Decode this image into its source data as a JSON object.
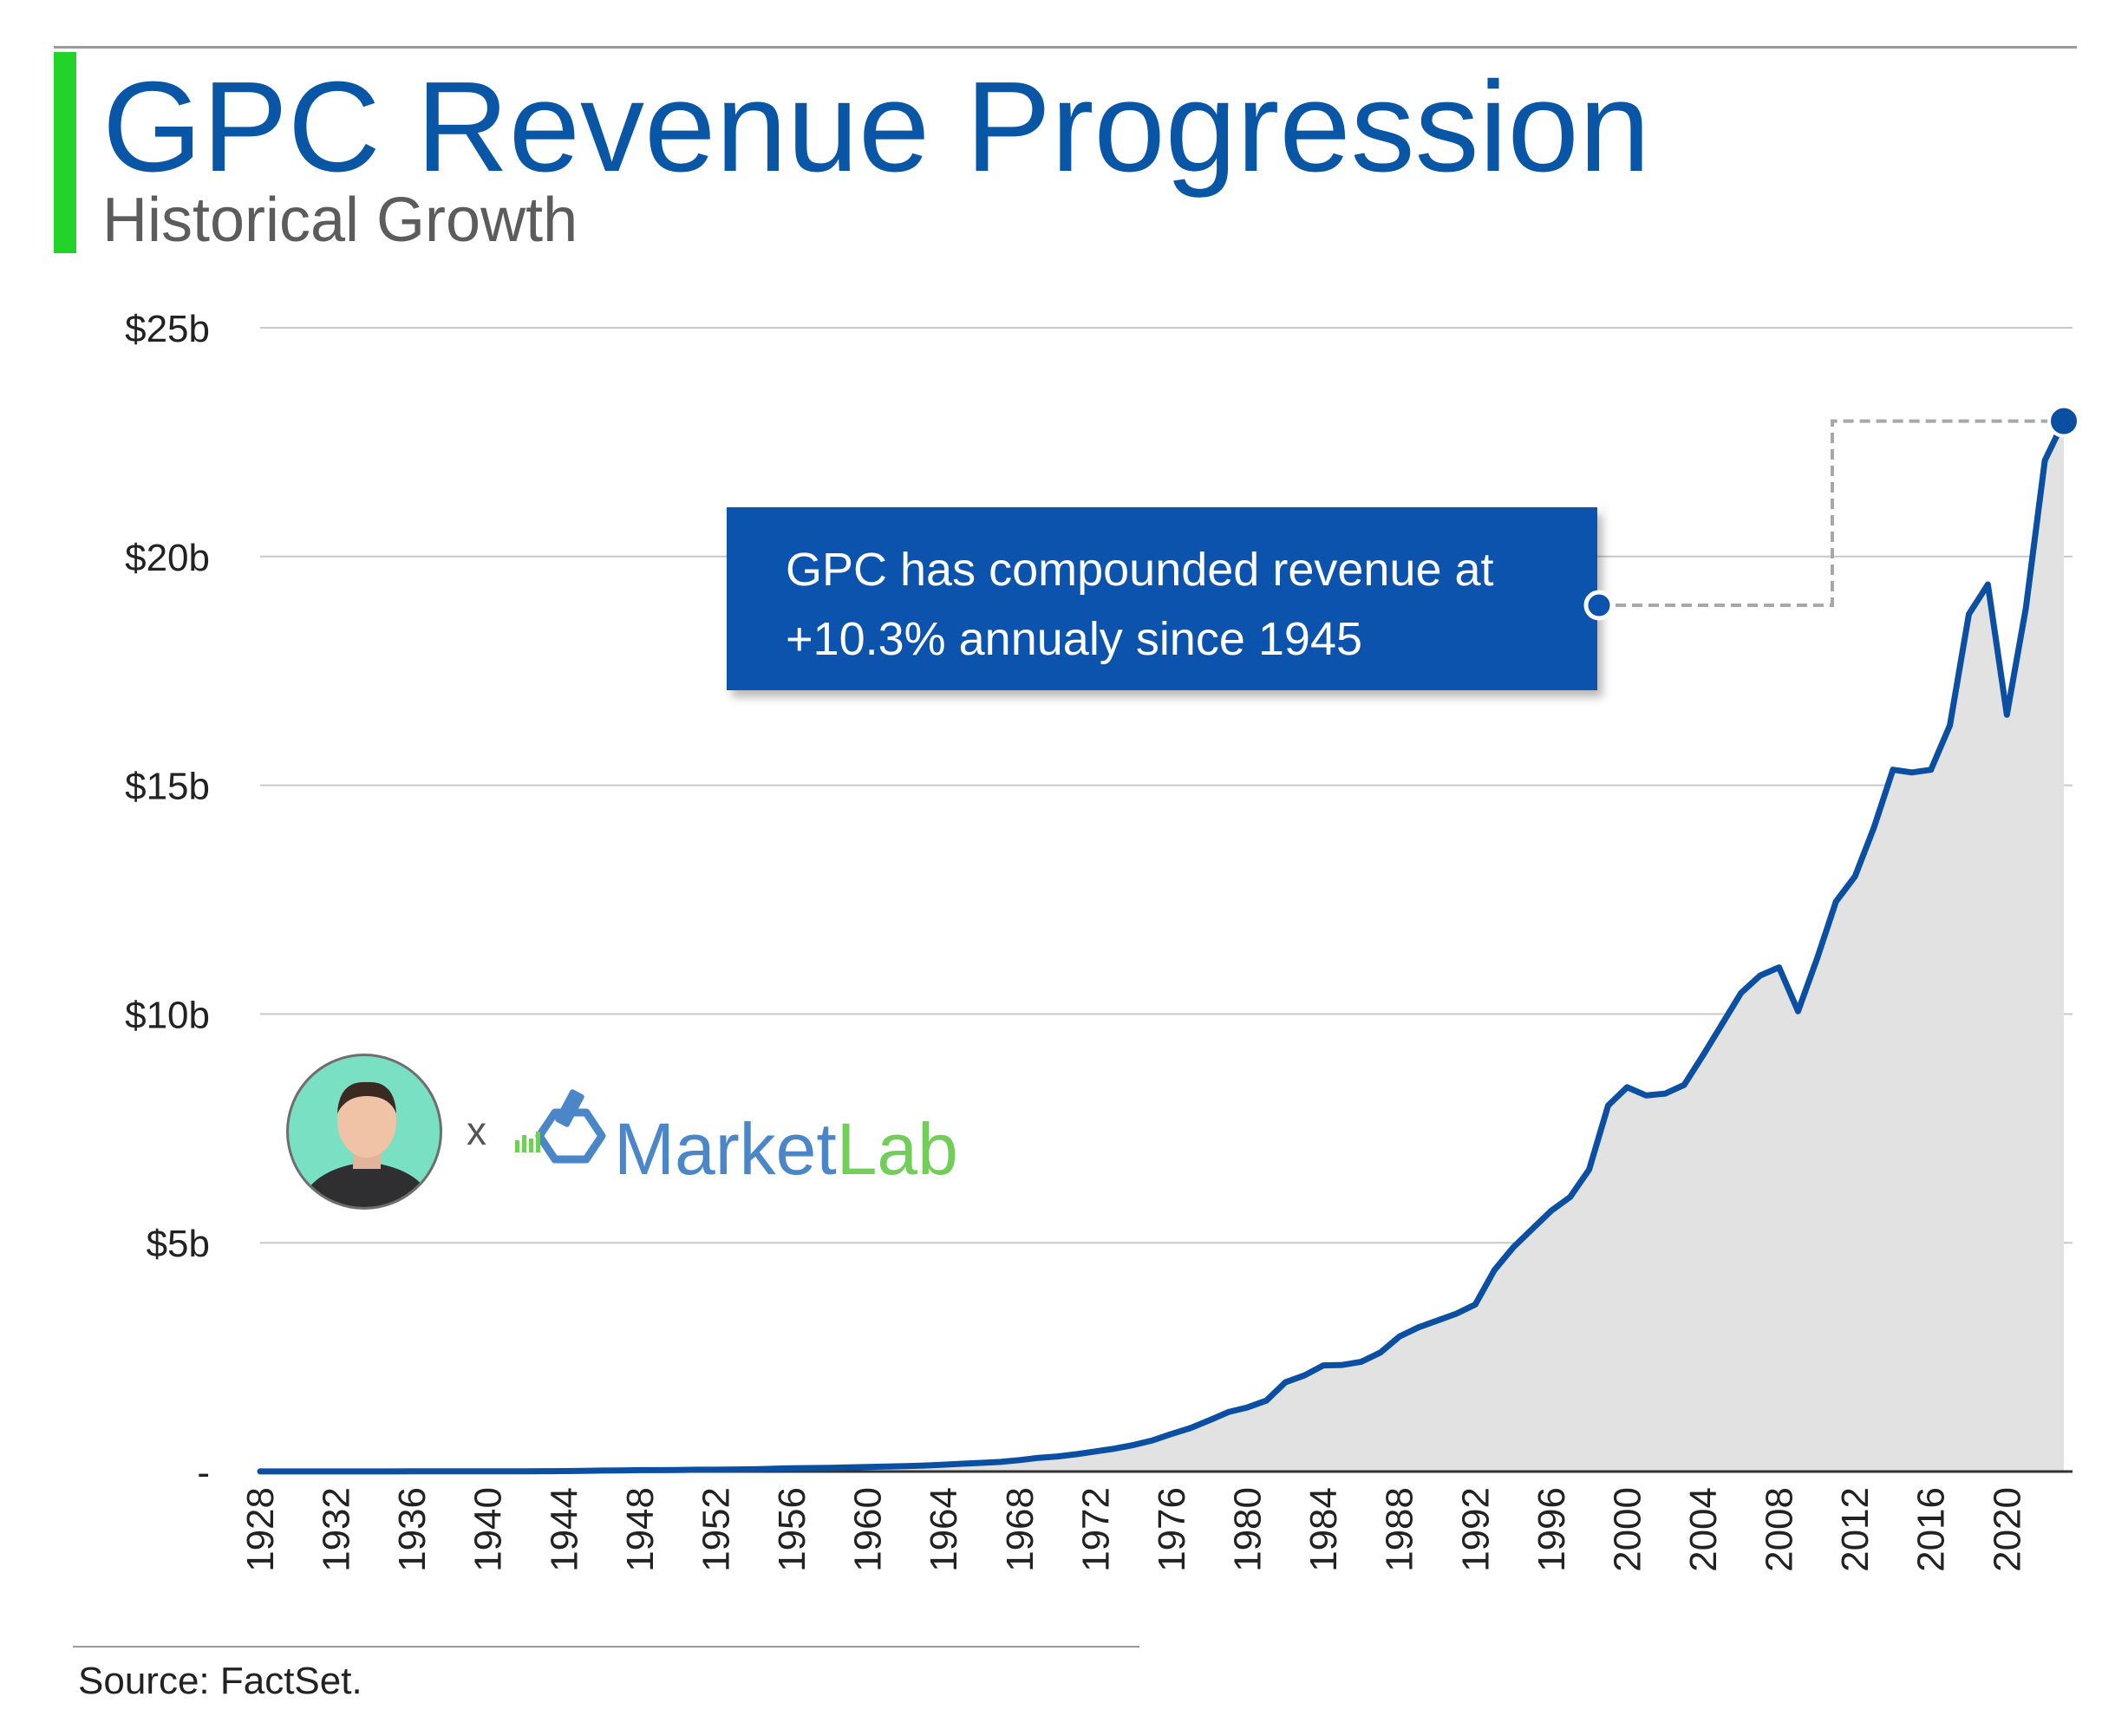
{
  "header": {
    "title": "GPC Revenue Progression",
    "subtitle": "Historical Growth"
  },
  "callout": {
    "line1": "GPC has compounded revenue at",
    "line2": "+10.3% annualy since 1945"
  },
  "branding": {
    "separator": "x",
    "brand_part1": "Market",
    "brand_part2": "Lab"
  },
  "footer": {
    "source": "Source: FactSet."
  },
  "colors": {
    "title": "#0a56a6",
    "line": "#0b4fa3",
    "area": "#e2e2e2",
    "accent": "#22d42a",
    "callout_bg": "#0b53ad"
  },
  "chart_data": {
    "type": "area",
    "title": "GPC Revenue Progression",
    "subtitle": "Historical Growth",
    "xlabel": "",
    "ylabel": "",
    "ylim": [
      0,
      25
    ],
    "xlim": [
      1928,
      2023
    ],
    "yticks": [
      {
        "value": 0,
        "label": "-"
      },
      {
        "value": 5,
        "label": "$5b"
      },
      {
        "value": 10,
        "label": "$10b"
      },
      {
        "value": 15,
        "label": "$15b"
      },
      {
        "value": 20,
        "label": "$20b"
      },
      {
        "value": 25,
        "label": "$25b"
      }
    ],
    "xticks": [
      1928,
      1932,
      1936,
      1940,
      1944,
      1948,
      1952,
      1956,
      1960,
      1964,
      1968,
      1972,
      1976,
      1980,
      1984,
      1988,
      1992,
      1996,
      2000,
      2004,
      2008,
      2012,
      2016,
      2020
    ],
    "grid": true,
    "series": [
      {
        "values": [
          [
            1928,
            0.001
          ],
          [
            1929,
            0.001
          ],
          [
            1930,
            0.001
          ],
          [
            1931,
            0.001
          ],
          [
            1932,
            0.001
          ],
          [
            1933,
            0.001
          ],
          [
            1934,
            0.002
          ],
          [
            1935,
            0.002
          ],
          [
            1936,
            0.003
          ],
          [
            1937,
            0.003
          ],
          [
            1938,
            0.003
          ],
          [
            1939,
            0.004
          ],
          [
            1940,
            0.004
          ],
          [
            1941,
            0.005
          ],
          [
            1942,
            0.006
          ],
          [
            1943,
            0.008
          ],
          [
            1944,
            0.01
          ],
          [
            1945,
            0.015
          ],
          [
            1946,
            0.02
          ],
          [
            1947,
            0.025
          ],
          [
            1948,
            0.03
          ],
          [
            1949,
            0.03
          ],
          [
            1950,
            0.035
          ],
          [
            1951,
            0.04
          ],
          [
            1952,
            0.04
          ],
          [
            1953,
            0.045
          ],
          [
            1954,
            0.05
          ],
          [
            1955,
            0.06
          ],
          [
            1956,
            0.07
          ],
          [
            1957,
            0.075
          ],
          [
            1958,
            0.08
          ],
          [
            1959,
            0.09
          ],
          [
            1960,
            0.1
          ],
          [
            1961,
            0.11
          ],
          [
            1962,
            0.12
          ],
          [
            1963,
            0.13
          ],
          [
            1964,
            0.15
          ],
          [
            1965,
            0.17
          ],
          [
            1966,
            0.19
          ],
          [
            1967,
            0.21
          ],
          [
            1968,
            0.25
          ],
          [
            1969,
            0.3
          ],
          [
            1970,
            0.33
          ],
          [
            1971,
            0.38
          ],
          [
            1972,
            0.44
          ],
          [
            1973,
            0.5
          ],
          [
            1974,
            0.58
          ],
          [
            1975,
            0.68
          ],
          [
            1976,
            0.82
          ],
          [
            1977,
            0.95
          ],
          [
            1978,
            1.12
          ],
          [
            1979,
            1.3
          ],
          [
            1980,
            1.4
          ],
          [
            1981,
            1.55
          ],
          [
            1982,
            1.95
          ],
          [
            1983,
            2.1
          ],
          [
            1984,
            2.32
          ],
          [
            1985,
            2.33
          ],
          [
            1986,
            2.4
          ],
          [
            1987,
            2.6
          ],
          [
            1988,
            2.95
          ],
          [
            1989,
            3.15
          ],
          [
            1990,
            3.3
          ],
          [
            1991,
            3.45
          ],
          [
            1992,
            3.65
          ],
          [
            1993,
            4.4
          ],
          [
            1994,
            4.9
          ],
          [
            1995,
            5.3
          ],
          [
            1996,
            5.7
          ],
          [
            1997,
            6.0
          ],
          [
            1998,
            6.6
          ],
          [
            1999,
            8.0
          ],
          [
            2000,
            8.4
          ],
          [
            2001,
            8.22
          ],
          [
            2002,
            8.26
          ],
          [
            2003,
            8.45
          ],
          [
            2004,
            9.1
          ],
          [
            2005,
            9.78
          ],
          [
            2006,
            10.46
          ],
          [
            2007,
            10.84
          ],
          [
            2008,
            11.02
          ],
          [
            2009,
            10.06
          ],
          [
            2010,
            11.21
          ],
          [
            2011,
            12.46
          ],
          [
            2012,
            13.01
          ],
          [
            2013,
            14.08
          ],
          [
            2014,
            15.34
          ],
          [
            2015,
            15.28
          ],
          [
            2016,
            15.34
          ],
          [
            2017,
            16.31
          ],
          [
            2018,
            18.74
          ],
          [
            2019,
            19.39
          ],
          [
            2020,
            16.54
          ],
          [
            2021,
            18.87
          ],
          [
            2022,
            22.1
          ],
          [
            2023,
            22.96
          ]
        ]
      }
    ],
    "annotation": {
      "text": "GPC has compounded revenue at +10.3% annualy since 1945",
      "points_to": [
        2023,
        22.96
      ]
    },
    "source": "Source: FactSet."
  }
}
